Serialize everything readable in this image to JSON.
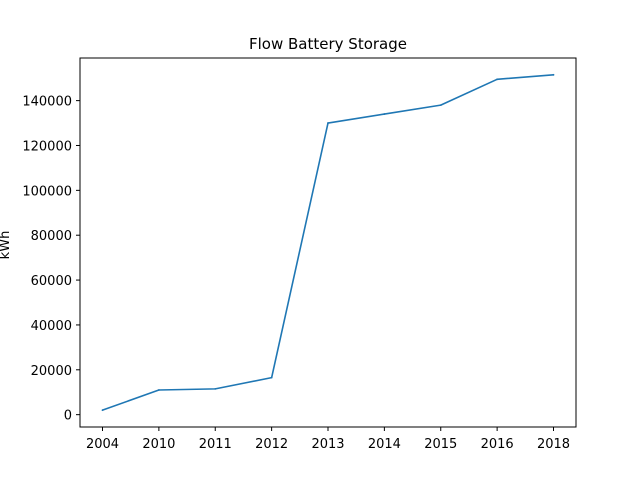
{
  "chart_data": {
    "type": "line",
    "title": "Flow Battery Storage",
    "xlabel": "",
    "ylabel": "kWh",
    "categories": [
      "2004",
      "2010",
      "2011",
      "2012",
      "2013",
      "2014",
      "2015",
      "2016",
      "2018"
    ],
    "series": [
      {
        "values": [
          2000,
          11000,
          11500,
          16500,
          130000,
          134000,
          138000,
          149500,
          151500
        ],
        "color": "#1f77b4"
      }
    ],
    "yticks": [
      0,
      20000,
      40000,
      60000,
      80000,
      100000,
      120000,
      140000
    ],
    "ylim": [
      -5500,
      159000
    ],
    "grid": false,
    "legend": "none"
  }
}
